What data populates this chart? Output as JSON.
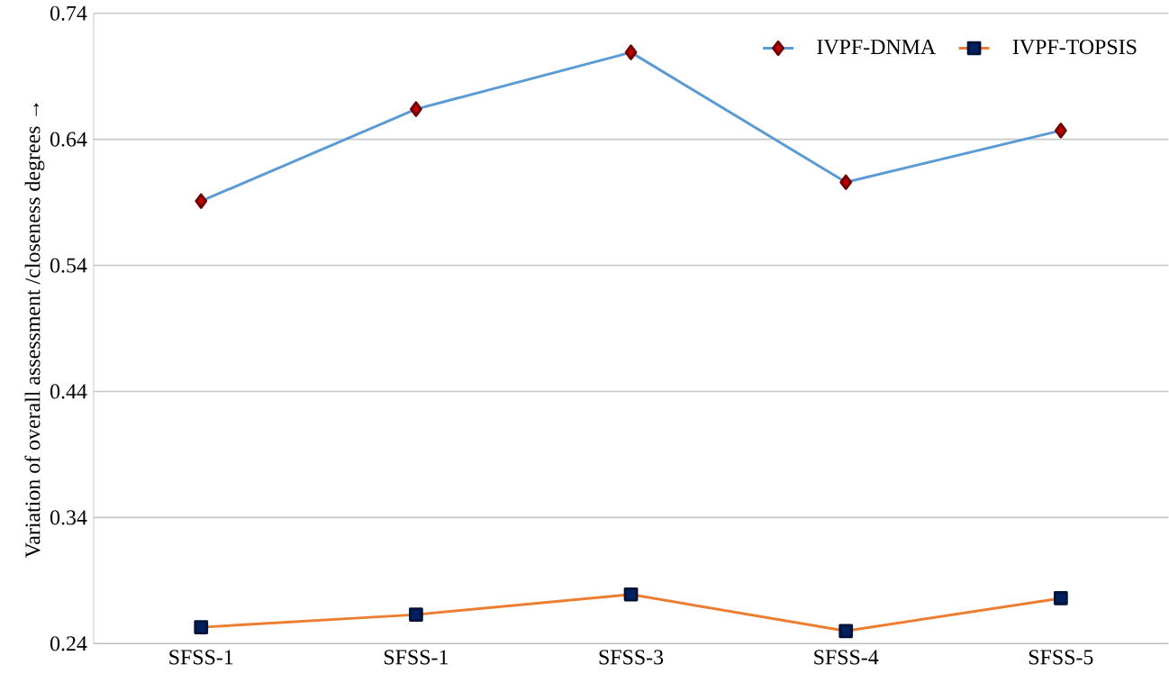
{
  "chart_data": {
    "type": "line",
    "ylabel": "Variation of overall assessment /closeness degrees →",
    "categories": [
      "SFSS-1",
      "SFSS-1",
      "SFSS-3",
      "SFSS-4",
      "SFSS-5"
    ],
    "series": [
      {
        "name": "IVPF-DNMA",
        "color": "#5b9bd5",
        "marker": "diamond",
        "values": [
          0.591,
          0.664,
          0.709,
          0.606,
          0.647
        ]
      },
      {
        "name": "IVPF-TOPSIS",
        "color": "#ed7d31",
        "marker": "square",
        "values": [
          0.253,
          0.263,
          0.279,
          0.25,
          0.276
        ]
      }
    ],
    "ylim": [
      0.24,
      0.74
    ],
    "yticks": [
      0.24,
      0.34,
      0.44,
      0.54,
      0.64,
      0.74
    ],
    "grid": "y",
    "legend": "top right",
    "line_style": "solid"
  }
}
